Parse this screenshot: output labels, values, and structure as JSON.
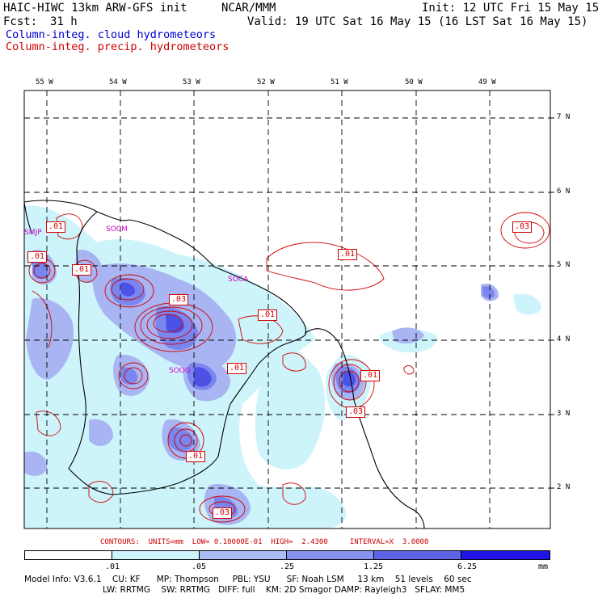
{
  "header": {
    "model_title": "HAIC-HIWC 13km ARW-GFS init",
    "org": "NCAR/MMM",
    "init": "Init: 12 UTC Fri 15 May 15",
    "fcst_label": "Fcst:",
    "fcst_value": "31 h",
    "valid": "Valid: 19 UTC Sat 16 May 15 (16 LST Sat 16 May 15)"
  },
  "fields": {
    "cloud": "Column-integ. cloud hydrometeors",
    "precip": "Column-integ. precip. hydrometeors"
  },
  "map": {
    "lon_labels": [
      "55 W",
      "54 W",
      "53 W",
      "52 W",
      "51 W",
      "50 W",
      "49 W"
    ],
    "lat_labels": [
      "7 N",
      "6 N",
      "5 N",
      "4 N",
      "3 N",
      "2 N"
    ],
    "contour_labels": [
      ".01",
      ".01",
      ".01",
      ".03",
      ".01",
      ".01",
      ".01",
      ".01",
      ".03",
      ".01",
      ".03",
      ".03"
    ],
    "stations": [
      "SMJP",
      "SOCM",
      "SOCA",
      "SOOG"
    ],
    "colors": {
      "cloud_light": "#cdf4fb",
      "cloud_mid": "#a9b5f2",
      "cloud_strong": "#7a85ee",
      "cloud_deep": "#4c52e4",
      "precip": "#d00000",
      "coast": "#000000",
      "grid": "#000000"
    }
  },
  "contours_info": {
    "text": "CONTOURS:  UNITS=mm  LOW= 0.10000E-01  HIGH=  2.4300     INTERVAL=X  3.0000"
  },
  "colorbar": {
    "ticks": [
      ".01",
      ".05",
      ".25",
      "1.25",
      "6.25"
    ],
    "unit": "mm",
    "colors": [
      "#ffffff",
      "#cdf4fb",
      "#aabcf3",
      "#8891ee",
      "#5f63e6",
      "#1f14e3"
    ]
  },
  "model_info": {
    "line1": "Model Info: V3.6.1    CU: KF      MP: Thompson     PBL: YSU      SF: Noah LSM     13 km    51 levels    60 sec",
    "line2": "LW: RRTMG    SW: RRTMG   DIFF: full    KM: 2D Smagor DAMP: Rayleigh3   SFLAY: MM5"
  }
}
